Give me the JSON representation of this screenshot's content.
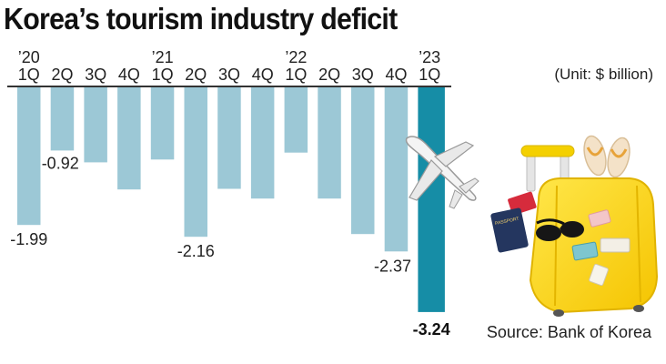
{
  "header": {
    "title": "Korea’s tourism industry deficit",
    "unit": "(Unit: $ billion)",
    "source": "Source: Bank of Korea"
  },
  "colors": {
    "bar": "#9cc8d6",
    "highlight": "#168da6",
    "baseline": "#333333"
  },
  "illustration": {
    "airplane": "airplane-icon",
    "suitcase": "suitcase-icon",
    "sandals": "sandals-icon",
    "sunglasses": "sunglasses-icon",
    "passport": "passport-icon",
    "passport_text": "PASSPORT"
  },
  "chart_data": {
    "type": "bar",
    "title": "Korea’s tourism industry deficit",
    "xlabel": "",
    "ylabel": "$ billion",
    "ylim": [
      -3.5,
      0
    ],
    "grid": false,
    "categories": [
      "1Q",
      "2Q",
      "3Q",
      "4Q",
      "1Q",
      "2Q",
      "3Q",
      "4Q",
      "1Q",
      "2Q",
      "3Q",
      "4Q",
      "1Q"
    ],
    "year_labels": [
      "’20",
      "",
      "",
      "",
      "’21",
      "",
      "",
      "",
      "’22",
      "",
      "",
      "",
      "’23"
    ],
    "values": [
      -1.99,
      -0.92,
      -1.09,
      -1.48,
      -1.05,
      -2.16,
      -1.47,
      -1.61,
      -0.95,
      -1.61,
      -2.12,
      -2.37,
      -3.24
    ],
    "data_labels": [
      "-1.99",
      "-0.92",
      "",
      "",
      "",
      "-2.16",
      "",
      "",
      "",
      "",
      "",
      "-2.37",
      "-3.24"
    ],
    "highlight_index": 12
  }
}
